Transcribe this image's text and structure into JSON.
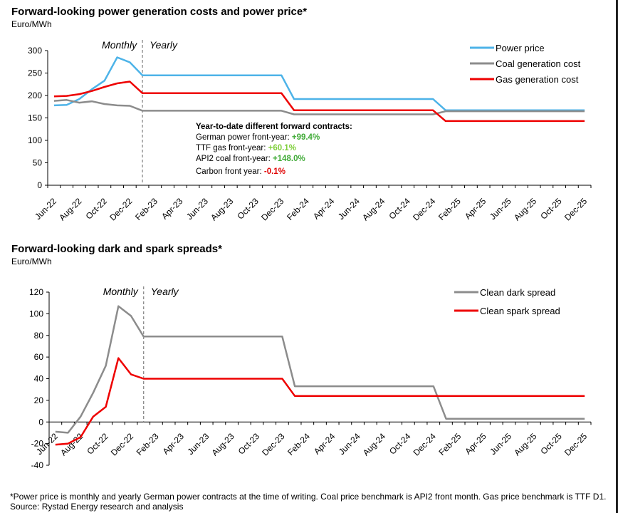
{
  "charts": [
    {
      "title": "Forward-looking power generation costs and power price*",
      "unit": "Euro/MWh",
      "monthly_label": "Monthly",
      "yearly_label": "Yearly",
      "annotation": {
        "heading": "Year-to-date different forward contracts:",
        "lines": [
          {
            "label": "German power front-year: ",
            "value": "+99.4%",
            "color": "#3faa36"
          },
          {
            "label": "TTF gas front-year: ",
            "value": "+60.1%",
            "color": "#7fcf3a"
          },
          {
            "label": "API2 coal front-year: ",
            "value": "+148.0%",
            "color": "#3faa36"
          },
          {
            "label": "Carbon front year: ",
            "value": "-0.1%",
            "color": "#e00000"
          }
        ]
      }
    },
    {
      "title": "Forward-looking dark and spark spreads*",
      "unit": "Euro/MWh",
      "monthly_label": "Monthly",
      "yearly_label": "Yearly"
    }
  ],
  "chart_data": [
    {
      "type": "line",
      "title": "Forward-looking power generation costs and power price*",
      "ylabel": "Euro/MWh",
      "ylim": [
        0,
        300
      ],
      "yticks": [
        0,
        50,
        100,
        150,
        200,
        250,
        300
      ],
      "x_tick_labels": [
        "Jun-22",
        "Aug-22",
        "Oct-22",
        "Dec-22",
        "Feb-23",
        "Apr-23",
        "Jun-23",
        "Aug-23",
        "Oct-23",
        "Dec-23",
        "Feb-24",
        "Apr-24",
        "Jun-24",
        "Aug-24",
        "Oct-24",
        "Dec-24",
        "Feb-25",
        "Apr-25",
        "Jun-25",
        "Aug-25",
        "Oct-25",
        "Dec-25"
      ],
      "legend_position": "top-right",
      "divider_after": "Dec-22",
      "series": [
        {
          "name": "Power price",
          "color": "#4db3e8",
          "points": [
            [
              "Jun-22",
              178
            ],
            [
              "Jul-22",
              179
            ],
            [
              "Aug-22",
              192
            ],
            [
              "Sep-22",
              214
            ],
            [
              "Oct-22",
              233
            ],
            [
              "Nov-22",
              285
            ],
            [
              "Dec-22",
              274
            ],
            [
              "Jan-23",
              245
            ],
            [
              "Dec-23",
              245
            ],
            [
              "Jan-24",
              192
            ],
            [
              "Dec-24",
              192
            ],
            [
              "Jan-25",
              167
            ],
            [
              "Dec-25",
              167
            ]
          ]
        },
        {
          "name": "Coal generation cost",
          "color": "#8c8c8c",
          "points": [
            [
              "Jun-22",
              188
            ],
            [
              "Jul-22",
              190
            ],
            [
              "Aug-22",
              184
            ],
            [
              "Sep-22",
              187
            ],
            [
              "Oct-22",
              181
            ],
            [
              "Nov-22",
              178
            ],
            [
              "Dec-22",
              177
            ],
            [
              "Jan-23",
              166
            ],
            [
              "Dec-23",
              166
            ],
            [
              "Jan-24",
              158
            ],
            [
              "Dec-24",
              158
            ],
            [
              "Jan-25",
              165
            ],
            [
              "Dec-25",
              165
            ]
          ]
        },
        {
          "name": "Gas generation cost",
          "color": "#ee0000",
          "points": [
            [
              "Jun-22",
              198
            ],
            [
              "Jul-22",
              199
            ],
            [
              "Aug-22",
              203
            ],
            [
              "Sep-22",
              210
            ],
            [
              "Oct-22",
              219
            ],
            [
              "Nov-22",
              227
            ],
            [
              "Dec-22",
              231
            ],
            [
              "Jan-23",
              205
            ],
            [
              "Dec-23",
              205
            ],
            [
              "Jan-24",
              167
            ],
            [
              "Dec-24",
              167
            ],
            [
              "Jan-25",
              143
            ],
            [
              "Dec-25",
              143
            ]
          ]
        }
      ]
    },
    {
      "type": "line",
      "title": "Forward-looking dark and spark spreads*",
      "ylabel": "Euro/MWh",
      "ylim": [
        -40,
        120
      ],
      "yticks": [
        -40,
        -20,
        0,
        20,
        40,
        60,
        80,
        100,
        120
      ],
      "x_tick_labels": [
        "Jun-22",
        "Aug-22",
        "Oct-22",
        "Dec-22",
        "Feb-23",
        "Apr-23",
        "Jun-23",
        "Aug-23",
        "Oct-23",
        "Dec-23",
        "Feb-24",
        "Apr-24",
        "Jun-24",
        "Aug-24",
        "Oct-24",
        "Dec-24",
        "Feb-25",
        "Apr-25",
        "Jun-25",
        "Aug-25",
        "Oct-25",
        "Dec-25"
      ],
      "legend_position": "top-right",
      "divider_after": "Dec-22",
      "series": [
        {
          "name": "Clean dark spread",
          "color": "#8c8c8c",
          "points": [
            [
              "Jun-22",
              -9
            ],
            [
              "Jul-22",
              -10
            ],
            [
              "Aug-22",
              5
            ],
            [
              "Sep-22",
              27
            ],
            [
              "Oct-22",
              52
            ],
            [
              "Nov-22",
              107
            ],
            [
              "Dec-22",
              98
            ],
            [
              "Jan-23",
              79
            ],
            [
              "Dec-23",
              79
            ],
            [
              "Jan-24",
              33
            ],
            [
              "Dec-24",
              33
            ],
            [
              "Jan-25",
              3
            ],
            [
              "Dec-25",
              3
            ]
          ]
        },
        {
          "name": "Clean spark spread",
          "color": "#ee0000",
          "points": [
            [
              "Jun-22",
              -21
            ],
            [
              "Jul-22",
              -20
            ],
            [
              "Aug-22",
              -14
            ],
            [
              "Sep-22",
              5
            ],
            [
              "Oct-22",
              14
            ],
            [
              "Nov-22",
              59
            ],
            [
              "Dec-22",
              44
            ],
            [
              "Jan-23",
              40
            ],
            [
              "Dec-23",
              40
            ],
            [
              "Jan-24",
              24
            ],
            [
              "Dec-24",
              24
            ],
            [
              "Jan-25",
              24
            ],
            [
              "Dec-25",
              24
            ]
          ]
        }
      ]
    }
  ],
  "footnote": "*Power price is monthly and yearly German power contracts at the time of writing. Coal price benchmark is API2 front month. Gas price benchmark is TTF D1. Source: Rystad Energy research and analysis"
}
